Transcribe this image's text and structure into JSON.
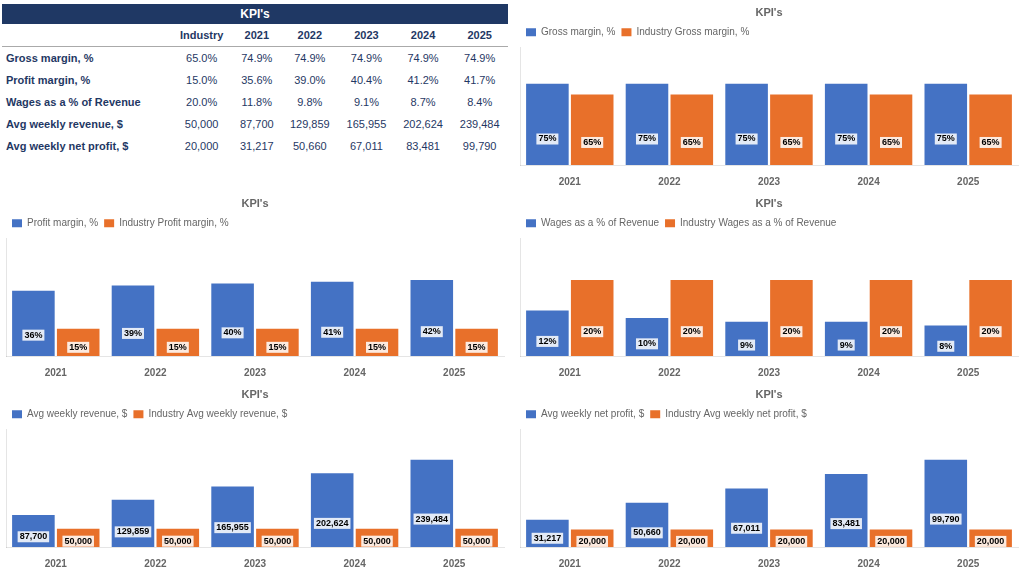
{
  "chart_data": [
    {
      "type": "table",
      "title": "KPI's",
      "categories": [
        "Industry",
        "2021",
        "2022",
        "2023",
        "2024",
        "2025"
      ],
      "series": [
        {
          "name": "Gross margin, %",
          "values": [
            65.0,
            74.9,
            74.9,
            74.9,
            74.9,
            74.9
          ],
          "value_labels": [
            "65.0%",
            "74.9%",
            "74.9%",
            "74.9%",
            "74.9%",
            "74.9%"
          ]
        },
        {
          "name": "Profit margin, %",
          "values": [
            15.0,
            35.6,
            39.0,
            40.4,
            41.2,
            41.7
          ],
          "value_labels": [
            "15.0%",
            "35.6%",
            "39.0%",
            "40.4%",
            "41.2%",
            "41.7%"
          ]
        },
        {
          "name": "Wages as a % of Revenue",
          "values": [
            20.0,
            11.8,
            9.8,
            9.1,
            8.7,
            8.4
          ],
          "value_labels": [
            "20.0%",
            "11.8%",
            "9.8%",
            "9.1%",
            "8.7%",
            "8.4%"
          ]
        },
        {
          "name": "Avg weekly revenue, $",
          "values": [
            50000,
            87700,
            129859,
            165955,
            202624,
            239484
          ],
          "value_labels": [
            "50,000",
            "87,700",
            "129,859",
            "165,955",
            "202,624",
            "239,484"
          ]
        },
        {
          "name": "Avg weekly net profit, $",
          "values": [
            20000,
            31217,
            50660,
            67011,
            83481,
            99790
          ],
          "value_labels": [
            "20,000",
            "31,217",
            "50,660",
            "67,011",
            "83,481",
            "99,790"
          ]
        }
      ]
    },
    {
      "type": "bar",
      "title": "KPI's",
      "categories": [
        "2021",
        "2022",
        "2023",
        "2024",
        "2025"
      ],
      "series": [
        {
          "name": "Gross margin, %",
          "color": "#4472C4",
          "values": [
            75,
            75,
            75,
            75,
            75
          ],
          "value_labels": [
            "75%",
            "75%",
            "75%",
            "75%",
            "75%"
          ]
        },
        {
          "name": "Industry Gross margin, %",
          "color": "#E8702A",
          "values": [
            65,
            65,
            65,
            65,
            65
          ],
          "value_labels": [
            "65%",
            "65%",
            "65%",
            "65%",
            "65%"
          ]
        }
      ],
      "ylim": [
        0,
        108.75
      ],
      "grid": false,
      "legend": "upper left",
      "data_labels": true,
      "tick_labels": "x"
    },
    {
      "type": "bar",
      "title": "KPI's",
      "categories": [
        "2021",
        "2022",
        "2023",
        "2024",
        "2025"
      ],
      "series": [
        {
          "name": "Profit margin, %",
          "color": "#4472C4",
          "values": [
            36,
            39,
            40,
            41,
            42
          ],
          "value_labels": [
            "36%",
            "39%",
            "40%",
            "41%",
            "42%"
          ]
        },
        {
          "name": "Industry Profit margin, %",
          "color": "#E8702A",
          "values": [
            15,
            15,
            15,
            15,
            15
          ],
          "value_labels": [
            "15%",
            "15%",
            "15%",
            "15%",
            "15%"
          ]
        }
      ],
      "ylim": [
        0,
        65.1
      ],
      "grid": false,
      "legend": "upper left",
      "data_labels": true,
      "tick_labels": "x"
    },
    {
      "type": "bar",
      "title": "KPI's",
      "categories": [
        "2021",
        "2022",
        "2023",
        "2024",
        "2025"
      ],
      "series": [
        {
          "name": "Wages as a % of Revenue",
          "color": "#4472C4",
          "values": [
            12,
            10,
            9,
            9,
            8
          ],
          "value_labels": [
            "12%",
            "10%",
            "9%",
            "9%",
            "8%"
          ]
        },
        {
          "name": "Industry Wages as a % of Revenue",
          "color": "#E8702A",
          "values": [
            20,
            20,
            20,
            20,
            20
          ],
          "value_labels": [
            "20%",
            "20%",
            "20%",
            "20%",
            "20%"
          ]
        }
      ],
      "ylim": [
        0,
        31
      ],
      "grid": false,
      "legend": "upper left",
      "data_labels": true,
      "tick_labels": "x"
    },
    {
      "type": "bar",
      "title": "KPI's",
      "categories": [
        "2021",
        "2022",
        "2023",
        "2024",
        "2025"
      ],
      "series": [
        {
          "name": "Avg weekly revenue, $",
          "color": "#4472C4",
          "values": [
            87700,
            129859,
            165955,
            202624,
            239484
          ],
          "value_labels": [
            "87,700",
            "129,859",
            "165,955",
            "202,624",
            "239,484"
          ]
        },
        {
          "name": "Industry Avg weekly revenue, $",
          "color": "#E8702A",
          "values": [
            50000,
            50000,
            50000,
            50000,
            50000
          ],
          "value_labels": [
            "50,000",
            "50,000",
            "50,000",
            "50,000",
            "50,000"
          ]
        }
      ],
      "ylim": [
        0,
        323303.4
      ],
      "grid": false,
      "legend": "upper left",
      "data_labels": true,
      "tick_labels": "x"
    },
    {
      "type": "bar",
      "title": "KPI's",
      "categories": [
        "2021",
        "2022",
        "2023",
        "2024",
        "2025"
      ],
      "series": [
        {
          "name": "Avg weekly net profit, $",
          "color": "#4472C4",
          "values": [
            31217,
            50660,
            67011,
            83481,
            99790
          ],
          "value_labels": [
            "31,217",
            "50,660",
            "67,011",
            "83,481",
            "99,790"
          ]
        },
        {
          "name": "Industry Avg weekly net profit, $",
          "color": "#E8702A",
          "values": [
            20000,
            20000,
            20000,
            20000,
            20000
          ],
          "value_labels": [
            "20,000",
            "20,000",
            "20,000",
            "20,000",
            "20,000"
          ]
        }
      ],
      "ylim": [
        0,
        134716.5
      ],
      "grid": false,
      "legend": "upper left",
      "data_labels": true,
      "tick_labels": "x"
    }
  ]
}
